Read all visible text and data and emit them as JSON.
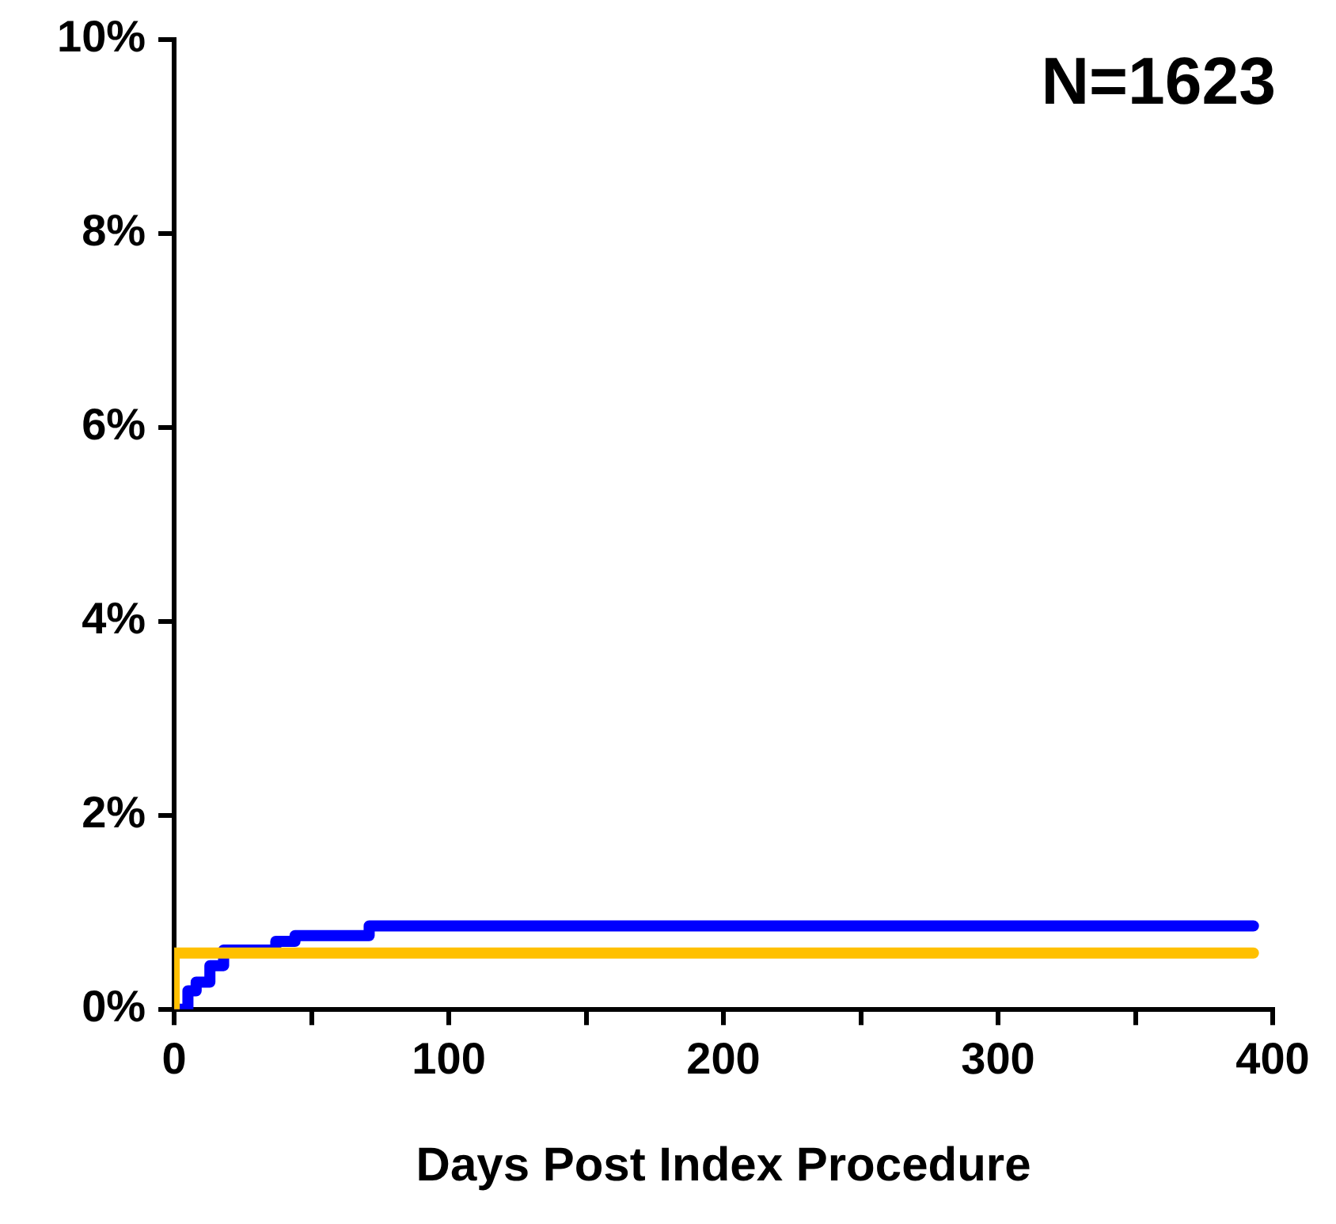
{
  "chart_data": {
    "type": "step",
    "xlabel": "Days Post Index Procedure",
    "annotations": [
      "N=1623"
    ],
    "series": [
      {
        "color": "#ffc000",
        "x": [
          0,
          0,
          393
        ],
        "values": [
          0,
          0.58,
          0.58
        ]
      },
      {
        "color": "#0000ff",
        "x": [
          0,
          5,
          8,
          13,
          18,
          37,
          44,
          71,
          393
        ],
        "values": [
          0,
          0.19,
          0.28,
          0.45,
          0.61,
          0.7,
          0.76,
          0.86,
          0.86
        ]
      }
    ],
    "xlim": [
      0,
      400
    ],
    "xticks": [
      0,
      {
        "value": 50,
        "label": null
      },
      100,
      {
        "value": 150,
        "label": null
      },
      200,
      {
        "value": 250,
        "label": null
      },
      300,
      {
        "value": 350,
        "label": null
      },
      400
    ],
    "ylim": [
      0,
      10
    ],
    "yticks": [
      {
        "value": 0,
        "label": "0%"
      },
      {
        "value": 2,
        "label": "2%"
      },
      {
        "value": 4,
        "label": "4%"
      },
      {
        "value": 6,
        "label": "6%"
      },
      {
        "value": 8,
        "label": "8%"
      },
      {
        "value": 10,
        "label": "10%"
      }
    ],
    "grid": false,
    "legend": false,
    "line_style": "solid",
    "marker": "none"
  }
}
